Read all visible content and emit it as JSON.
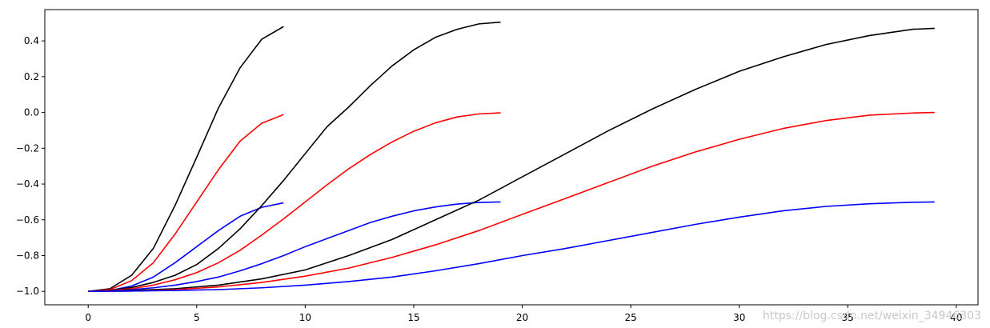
{
  "chart_data": {
    "type": "line",
    "title": "",
    "xlabel": "",
    "ylabel": "",
    "xlim": [
      -2,
      41
    ],
    "ylim": [
      -1.075,
      0.575
    ],
    "grid": false,
    "legend": "none",
    "xticks": [
      0,
      5,
      10,
      15,
      20,
      25,
      30,
      35,
      40
    ],
    "yticks": [
      -1.0,
      -0.8,
      -0.6,
      -0.4,
      -0.2,
      0.0,
      0.2,
      0.4
    ],
    "xtick_labels": [
      "0",
      "5",
      "10",
      "15",
      "20",
      "25",
      "30",
      "35",
      "40"
    ],
    "ytick_labels": [
      "−1.0",
      "−0.8",
      "−0.6",
      "−0.4",
      "−0.2",
      "0.0",
      "0.2",
      "0.4"
    ],
    "series": [
      {
        "group": 10,
        "color": "#000000",
        "x": [
          0,
          1,
          2,
          3,
          4,
          5,
          6,
          7,
          8,
          9
        ],
        "y": [
          -1.0,
          -0.985,
          -0.91,
          -0.76,
          -0.52,
          -0.25,
          0.025,
          0.25,
          0.41,
          0.48
        ]
      },
      {
        "group": 10,
        "color": "#ff0000",
        "x": [
          0,
          1,
          2,
          3,
          4,
          5,
          6,
          7,
          8,
          9
        ],
        "y": [
          -1.0,
          -0.99,
          -0.94,
          -0.84,
          -0.68,
          -0.5,
          -0.32,
          -0.16,
          -0.06,
          -0.012
        ]
      },
      {
        "group": 10,
        "color": "#0000ff",
        "x": [
          0,
          1,
          2,
          3,
          4,
          5,
          6,
          7,
          8,
          9
        ],
        "y": [
          -1.0,
          -0.995,
          -0.97,
          -0.92,
          -0.84,
          -0.75,
          -0.66,
          -0.58,
          -0.53,
          -0.505
        ]
      },
      {
        "group": 20,
        "color": "#000000",
        "x": [
          0,
          1,
          2,
          3,
          4,
          5,
          6,
          7,
          8,
          9,
          10,
          11,
          12,
          13,
          14,
          15,
          16,
          17,
          18,
          19
        ],
        "y": [
          -1.0,
          -0.994,
          -0.978,
          -0.95,
          -0.91,
          -0.85,
          -0.76,
          -0.65,
          -0.52,
          -0.38,
          -0.23,
          -0.08,
          0.03,
          0.15,
          0.26,
          0.35,
          0.42,
          0.465,
          0.495,
          0.505
        ]
      },
      {
        "group": 20,
        "color": "#ff0000",
        "x": [
          0,
          1,
          2,
          3,
          4,
          5,
          6,
          7,
          8,
          9,
          10,
          11,
          12,
          13,
          14,
          15,
          16,
          17,
          18,
          19
        ],
        "y": [
          -1.0,
          -0.995,
          -0.985,
          -0.965,
          -0.935,
          -0.895,
          -0.84,
          -0.77,
          -0.685,
          -0.595,
          -0.5,
          -0.405,
          -0.315,
          -0.235,
          -0.165,
          -0.105,
          -0.058,
          -0.025,
          -0.008,
          -0.002
        ]
      },
      {
        "group": 20,
        "color": "#0000ff",
        "x": [
          0,
          1,
          2,
          3,
          4,
          5,
          6,
          7,
          8,
          9,
          10,
          11,
          12,
          13,
          14,
          15,
          16,
          17,
          18,
          19
        ],
        "y": [
          -1.0,
          -0.997,
          -0.99,
          -0.98,
          -0.965,
          -0.945,
          -0.92,
          -0.885,
          -0.845,
          -0.8,
          -0.75,
          -0.705,
          -0.66,
          -0.615,
          -0.58,
          -0.55,
          -0.528,
          -0.512,
          -0.503,
          -0.5
        ]
      },
      {
        "group": 40,
        "color": "#000000",
        "x": [
          0,
          2,
          4,
          6,
          8,
          10,
          12,
          14,
          16,
          18,
          20,
          22,
          24,
          26,
          28,
          30,
          32,
          34,
          36,
          38,
          39
        ],
        "y": [
          -1.0,
          -0.995,
          -0.985,
          -0.965,
          -0.93,
          -0.88,
          -0.8,
          -0.71,
          -0.6,
          -0.49,
          -0.36,
          -0.23,
          -0.1,
          0.02,
          0.13,
          0.23,
          0.31,
          0.38,
          0.43,
          0.465,
          0.47
        ]
      },
      {
        "group": 40,
        "color": "#ff0000",
        "x": [
          0,
          2,
          4,
          6,
          8,
          10,
          12,
          14,
          16,
          18,
          20,
          22,
          24,
          26,
          28,
          30,
          32,
          34,
          36,
          38,
          39
        ],
        "y": [
          -1.0,
          -0.998,
          -0.99,
          -0.975,
          -0.95,
          -0.915,
          -0.87,
          -0.81,
          -0.74,
          -0.66,
          -0.57,
          -0.48,
          -0.39,
          -0.3,
          -0.22,
          -0.15,
          -0.09,
          -0.045,
          -0.015,
          -0.003,
          0.0
        ]
      },
      {
        "group": 40,
        "color": "#0000ff",
        "x": [
          0,
          2,
          4,
          6,
          8,
          10,
          12,
          14,
          16,
          18,
          20,
          22,
          24,
          26,
          28,
          30,
          32,
          34,
          36,
          38,
          39
        ],
        "y": [
          -1.0,
          -0.998,
          -0.995,
          -0.99,
          -0.98,
          -0.965,
          -0.945,
          -0.92,
          -0.885,
          -0.845,
          -0.8,
          -0.76,
          -0.715,
          -0.67,
          -0.625,
          -0.585,
          -0.55,
          -0.525,
          -0.51,
          -0.502,
          -0.5
        ]
      }
    ]
  },
  "watermark": "https://blog.csdn.net/weixin_34946303"
}
